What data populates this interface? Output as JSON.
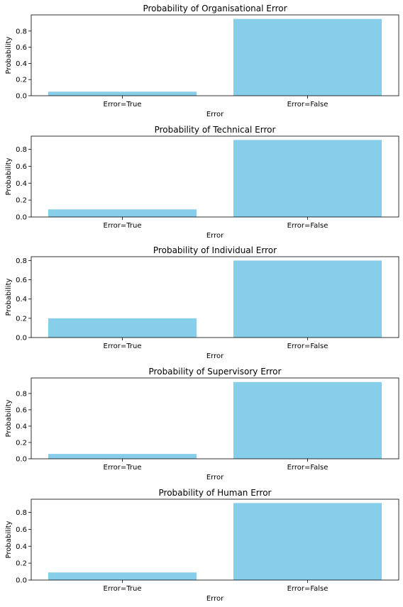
{
  "chart_data": [
    {
      "type": "bar",
      "title": "Probability of Organisational Error",
      "xlabel": "Error",
      "ylabel": "Probability",
      "categories": [
        "Error=True",
        "Error=False"
      ],
      "values": [
        0.05,
        0.95
      ],
      "ylim": [
        0,
        1.0
      ],
      "yticks": [
        "0.0",
        "0.2",
        "0.4",
        "0.6",
        "0.8"
      ],
      "grid": false,
      "bar_color": "#87CEEB"
    },
    {
      "type": "bar",
      "title": "Probability of Technical Error",
      "xlabel": "Error",
      "ylabel": "Probability",
      "categories": [
        "Error=True",
        "Error=False"
      ],
      "values": [
        0.09,
        0.91
      ],
      "ylim": [
        0,
        0.955
      ],
      "yticks": [
        "0.0",
        "0.2",
        "0.4",
        "0.6",
        "0.8"
      ],
      "grid": false,
      "bar_color": "#87CEEB"
    },
    {
      "type": "bar",
      "title": "Probability of Individual Error",
      "xlabel": "Error",
      "ylabel": "Probability",
      "categories": [
        "Error=True",
        "Error=False"
      ],
      "values": [
        0.2,
        0.8
      ],
      "ylim": [
        0,
        0.84
      ],
      "yticks": [
        "0.0",
        "0.2",
        "0.4",
        "0.6",
        "0.8"
      ],
      "grid": false,
      "bar_color": "#87CEEB"
    },
    {
      "type": "bar",
      "title": "Probability of Supervisory Error",
      "xlabel": "Error",
      "ylabel": "Probability",
      "categories": [
        "Error=True",
        "Error=False"
      ],
      "values": [
        0.06,
        0.94
      ],
      "ylim": [
        0,
        0.99
      ],
      "yticks": [
        "0.0",
        "0.2",
        "0.4",
        "0.6",
        "0.8"
      ],
      "grid": false,
      "bar_color": "#87CEEB"
    },
    {
      "type": "bar",
      "title": "Probability of Human Error",
      "xlabel": "Error",
      "ylabel": "Probability",
      "categories": [
        "Error=True",
        "Error=False"
      ],
      "values": [
        0.09,
        0.91
      ],
      "ylim": [
        0,
        0.955
      ],
      "yticks": [
        "0.0",
        "0.2",
        "0.4",
        "0.6",
        "0.8"
      ],
      "grid": false,
      "bar_color": "#87CEEB"
    }
  ]
}
